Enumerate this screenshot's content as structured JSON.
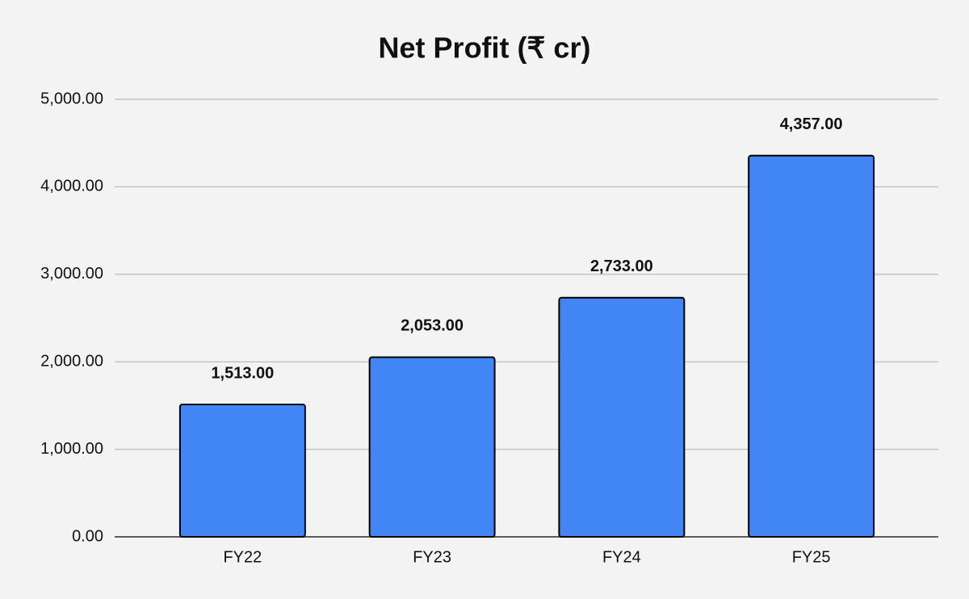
{
  "chart_data": {
    "type": "bar",
    "title": "Net Profit (₹ cr)",
    "categories": [
      "FY22",
      "FY23",
      "FY24",
      "FY25"
    ],
    "values": [
      1513,
      2053,
      2733,
      4357
    ],
    "value_labels": [
      "1,513.00",
      "2,053.00",
      "2,733.00",
      "4,357.00"
    ],
    "color": "#4285f4",
    "ylim": [
      0,
      5000
    ],
    "yticks": [
      {
        "value": 0,
        "label": "0.00"
      },
      {
        "value": 1000,
        "label": "1,000.00"
      },
      {
        "value": 2000,
        "label": "2,000.00"
      },
      {
        "value": 3000,
        "label": "3,000.00"
      },
      {
        "value": 4000,
        "label": "4,000.00"
      },
      {
        "value": 5000,
        "label": "5,000.00"
      }
    ],
    "grid": true
  }
}
